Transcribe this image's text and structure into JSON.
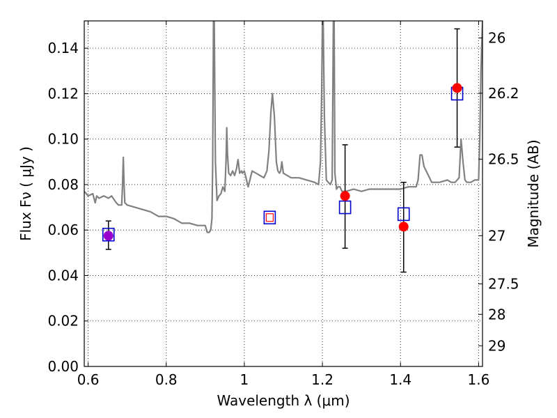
{
  "chart_data": {
    "type": "scatter",
    "title": "",
    "xlabel": "Wavelength  λ (μm)",
    "ylabel": "Flux  Fν  ( μJy )",
    "ylabel_right": "Magnitude (AB)",
    "xlim": [
      0.59,
      1.61
    ],
    "ylim": [
      0.0,
      0.152
    ],
    "grid": true,
    "x_ticks": [
      0.6,
      0.8,
      1.0,
      1.2,
      1.4,
      1.6
    ],
    "x_tick_labels": [
      "0.6",
      "0.8",
      "1",
      "1.2",
      "1.4",
      "1.6"
    ],
    "y_ticks": [
      0.0,
      0.02,
      0.04,
      0.06,
      0.08,
      0.1,
      0.12,
      0.14
    ],
    "y_tick_labels": [
      "0.00",
      "0.02",
      "0.04",
      "0.06",
      "0.08",
      "0.10",
      "0.12",
      "0.14"
    ],
    "right_ticks": [
      {
        "label": "26",
        "flux": 0.1445
      },
      {
        "label": "26.2",
        "flux": 0.1202
      },
      {
        "label": "26.5",
        "flux": 0.0912
      },
      {
        "label": "27",
        "flux": 0.0575
      },
      {
        "label": "27.5",
        "flux": 0.0363
      },
      {
        "label": "28",
        "flux": 0.0229
      },
      {
        "label": "29",
        "flux": 0.0091
      }
    ],
    "template_color": "#808080",
    "observed_color": "#ff0000",
    "model_color": "#0000cc",
    "template": {
      "x": [
        0.59,
        0.6,
        0.612,
        0.618,
        0.622,
        0.628,
        0.64,
        0.652,
        0.66,
        0.672,
        0.678,
        0.686,
        0.688,
        0.69,
        0.692,
        0.694,
        0.7,
        0.72,
        0.74,
        0.76,
        0.78,
        0.8,
        0.82,
        0.84,
        0.86,
        0.88,
        0.9,
        0.905,
        0.91,
        0.914,
        0.917,
        0.919,
        0.921,
        0.923,
        0.926,
        0.93,
        0.935,
        0.94,
        0.945,
        0.95,
        0.953,
        0.955,
        0.957,
        0.96,
        0.965,
        0.97,
        0.975,
        0.98,
        0.984,
        0.988,
        0.993,
        0.995,
        1.0,
        1.01,
        1.02,
        1.03,
        1.04,
        1.05,
        1.058,
        1.063,
        1.068,
        1.072,
        1.077,
        1.082,
        1.086,
        1.09,
        1.093,
        1.096,
        1.1,
        1.11,
        1.12,
        1.14,
        1.16,
        1.18,
        1.19,
        1.195,
        1.198,
        1.2,
        1.202,
        1.205,
        1.21,
        1.215,
        1.22,
        1.225,
        1.228,
        1.23,
        1.232,
        1.236,
        1.24,
        1.245,
        1.25,
        1.26,
        1.28,
        1.3,
        1.32,
        1.34,
        1.36,
        1.38,
        1.4,
        1.42,
        1.44,
        1.445,
        1.45,
        1.455,
        1.46,
        1.48,
        1.5,
        1.52,
        1.53,
        1.54,
        1.55,
        1.555,
        1.56,
        1.565,
        1.57,
        1.58,
        1.59,
        1.6,
        1.603,
        1.606,
        1.61
      ],
      "y": [
        0.077,
        0.075,
        0.076,
        0.072,
        0.075,
        0.074,
        0.075,
        0.074,
        0.075,
        0.072,
        0.071,
        0.071,
        0.08,
        0.092,
        0.08,
        0.072,
        0.071,
        0.07,
        0.069,
        0.068,
        0.066,
        0.066,
        0.065,
        0.063,
        0.063,
        0.062,
        0.062,
        0.059,
        0.059,
        0.06,
        0.065,
        0.09,
        0.152,
        0.152,
        0.09,
        0.073,
        0.075,
        0.076,
        0.079,
        0.077,
        0.09,
        0.105,
        0.093,
        0.085,
        0.084,
        0.086,
        0.084,
        0.087,
        0.091,
        0.085,
        0.086,
        0.085,
        0.086,
        0.079,
        0.086,
        0.085,
        0.084,
        0.083,
        0.086,
        0.095,
        0.112,
        0.12,
        0.11,
        0.09,
        0.086,
        0.085,
        0.086,
        0.09,
        0.085,
        0.084,
        0.083,
        0.083,
        0.082,
        0.081,
        0.08,
        0.09,
        0.12,
        0.152,
        0.152,
        0.11,
        0.082,
        0.081,
        0.08,
        0.082,
        0.152,
        0.152,
        0.085,
        0.078,
        0.079,
        0.079,
        0.077,
        0.077,
        0.078,
        0.077,
        0.078,
        0.078,
        0.078,
        0.078,
        0.078,
        0.079,
        0.079,
        0.082,
        0.093,
        0.093,
        0.088,
        0.081,
        0.081,
        0.082,
        0.081,
        0.081,
        0.083,
        0.1,
        0.09,
        0.082,
        0.081,
        0.081,
        0.082,
        0.082,
        0.1,
        0.13,
        0.152
      ]
    },
    "observed": [
      {
        "x": 0.652,
        "y": 0.0575,
        "err_low": 0.0515,
        "err_high": 0.064
      },
      {
        "x": 1.258,
        "y": 0.075,
        "err_low": 0.052,
        "err_high": 0.0975
      },
      {
        "x": 1.408,
        "y": 0.0615,
        "err_low": 0.0415,
        "err_high": 0.081
      },
      {
        "x": 1.545,
        "y": 0.1225,
        "err_low": 0.0965,
        "err_high": 0.1485
      }
    ],
    "model": [
      {
        "x": 0.652,
        "y": 0.058
      },
      {
        "x": 1.065,
        "y": 0.0655
      },
      {
        "x": 1.258,
        "y": 0.07
      },
      {
        "x": 1.408,
        "y": 0.067
      },
      {
        "x": 1.545,
        "y": 0.12
      }
    ],
    "model_inner_marker_x": 1.065
  }
}
